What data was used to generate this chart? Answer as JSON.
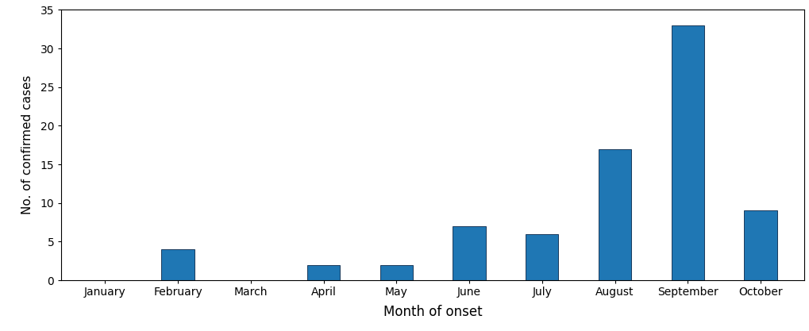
{
  "categories": [
    "January",
    "February",
    "March",
    "April",
    "May",
    "June",
    "July",
    "August",
    "September",
    "October"
  ],
  "values": [
    0,
    4,
    0,
    2,
    2,
    7,
    6,
    17,
    33,
    9
  ],
  "bar_color": "#1f77b4",
  "bar_edgecolor": "#1a3a5c",
  "xlabel": "Month of onset",
  "ylabel": "No. of confirmed cases",
  "ylim": [
    0,
    35
  ],
  "yticks": [
    0,
    5,
    10,
    15,
    20,
    25,
    30,
    35
  ],
  "background_color": "#ffffff",
  "xlabel_fontsize": 12,
  "ylabel_fontsize": 11,
  "tick_fontsize": 10,
  "bar_width": 0.45,
  "spine_color": "#000000",
  "spine_linewidth": 0.8
}
